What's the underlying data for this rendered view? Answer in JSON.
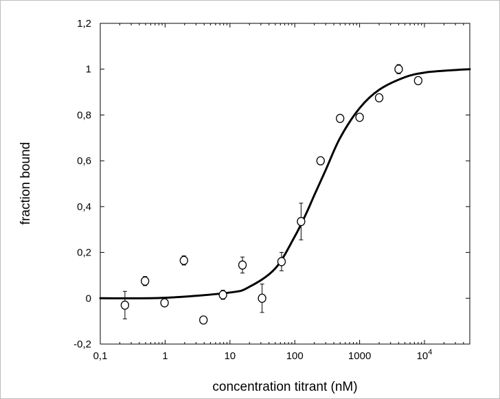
{
  "chart_data": {
    "type": "scatter",
    "title": "",
    "xlabel": "concentration titrant (nM)",
    "ylabel": "fraction bound",
    "x_scale": "log",
    "xlim": [
      0.1,
      50000
    ],
    "ylim": [
      -0.2,
      1.2
    ],
    "grid": false,
    "legend": "none",
    "x_ticks": [
      {
        "value": 0.1,
        "label": "0,1"
      },
      {
        "value": 1,
        "label": "1"
      },
      {
        "value": 10,
        "label": "10"
      },
      {
        "value": 100,
        "label": "100"
      },
      {
        "value": 1000,
        "label": "1000"
      },
      {
        "value": 10000,
        "label_base": "10",
        "label_exp": "4"
      }
    ],
    "y_ticks": [
      {
        "value": -0.2,
        "label": "-0,2"
      },
      {
        "value": 0,
        "label": "0"
      },
      {
        "value": 0.2,
        "label": "0,2"
      },
      {
        "value": 0.4,
        "label": "0,4"
      },
      {
        "value": 0.6,
        "label": "0,6"
      },
      {
        "value": 0.8,
        "label": "0,8"
      },
      {
        "value": 1,
        "label": "1"
      },
      {
        "value": 1.2,
        "label": "1,2"
      }
    ],
    "points": [
      {
        "x": 0.24,
        "y": -0.03,
        "err": 0.06
      },
      {
        "x": 0.49,
        "y": 0.075,
        "err": 0.02
      },
      {
        "x": 0.98,
        "y": -0.02,
        "err": 0.01
      },
      {
        "x": 1.95,
        "y": 0.165,
        "err": 0.02
      },
      {
        "x": 3.9,
        "y": -0.095,
        "err": 0.008
      },
      {
        "x": 7.8,
        "y": 0.015,
        "err": 0.02
      },
      {
        "x": 15.6,
        "y": 0.145,
        "err": 0.035
      },
      {
        "x": 31.3,
        "y": 0.0,
        "err": 0.062
      },
      {
        "x": 62.5,
        "y": 0.16,
        "err": 0.04
      },
      {
        "x": 125,
        "y": 0.335,
        "err": 0.08
      },
      {
        "x": 250,
        "y": 0.6,
        "err": 0.01
      },
      {
        "x": 500,
        "y": 0.785,
        "err": 0.01
      },
      {
        "x": 1000,
        "y": 0.79,
        "err": 0.012
      },
      {
        "x": 2000,
        "y": 0.875,
        "err": 0.01
      },
      {
        "x": 4000,
        "y": 1.0,
        "err": 0.02
      },
      {
        "x": 8000,
        "y": 0.95,
        "err": 0.01
      }
    ],
    "fit_curve": {
      "type": "sigmoid",
      "x": [
        0.1,
        1,
        10,
        20,
        50,
        100,
        150,
        200,
        300,
        500,
        1000,
        2000,
        5000,
        10000,
        20000,
        50000
      ],
      "y": [
        0.0,
        0.002,
        0.025,
        0.05,
        0.13,
        0.27,
        0.37,
        0.45,
        0.56,
        0.7,
        0.83,
        0.91,
        0.965,
        0.985,
        0.993,
        1.0
      ]
    },
    "colors": {
      "curve": "#000000",
      "points": "#000000",
      "frame": "#bdbdbd"
    }
  }
}
